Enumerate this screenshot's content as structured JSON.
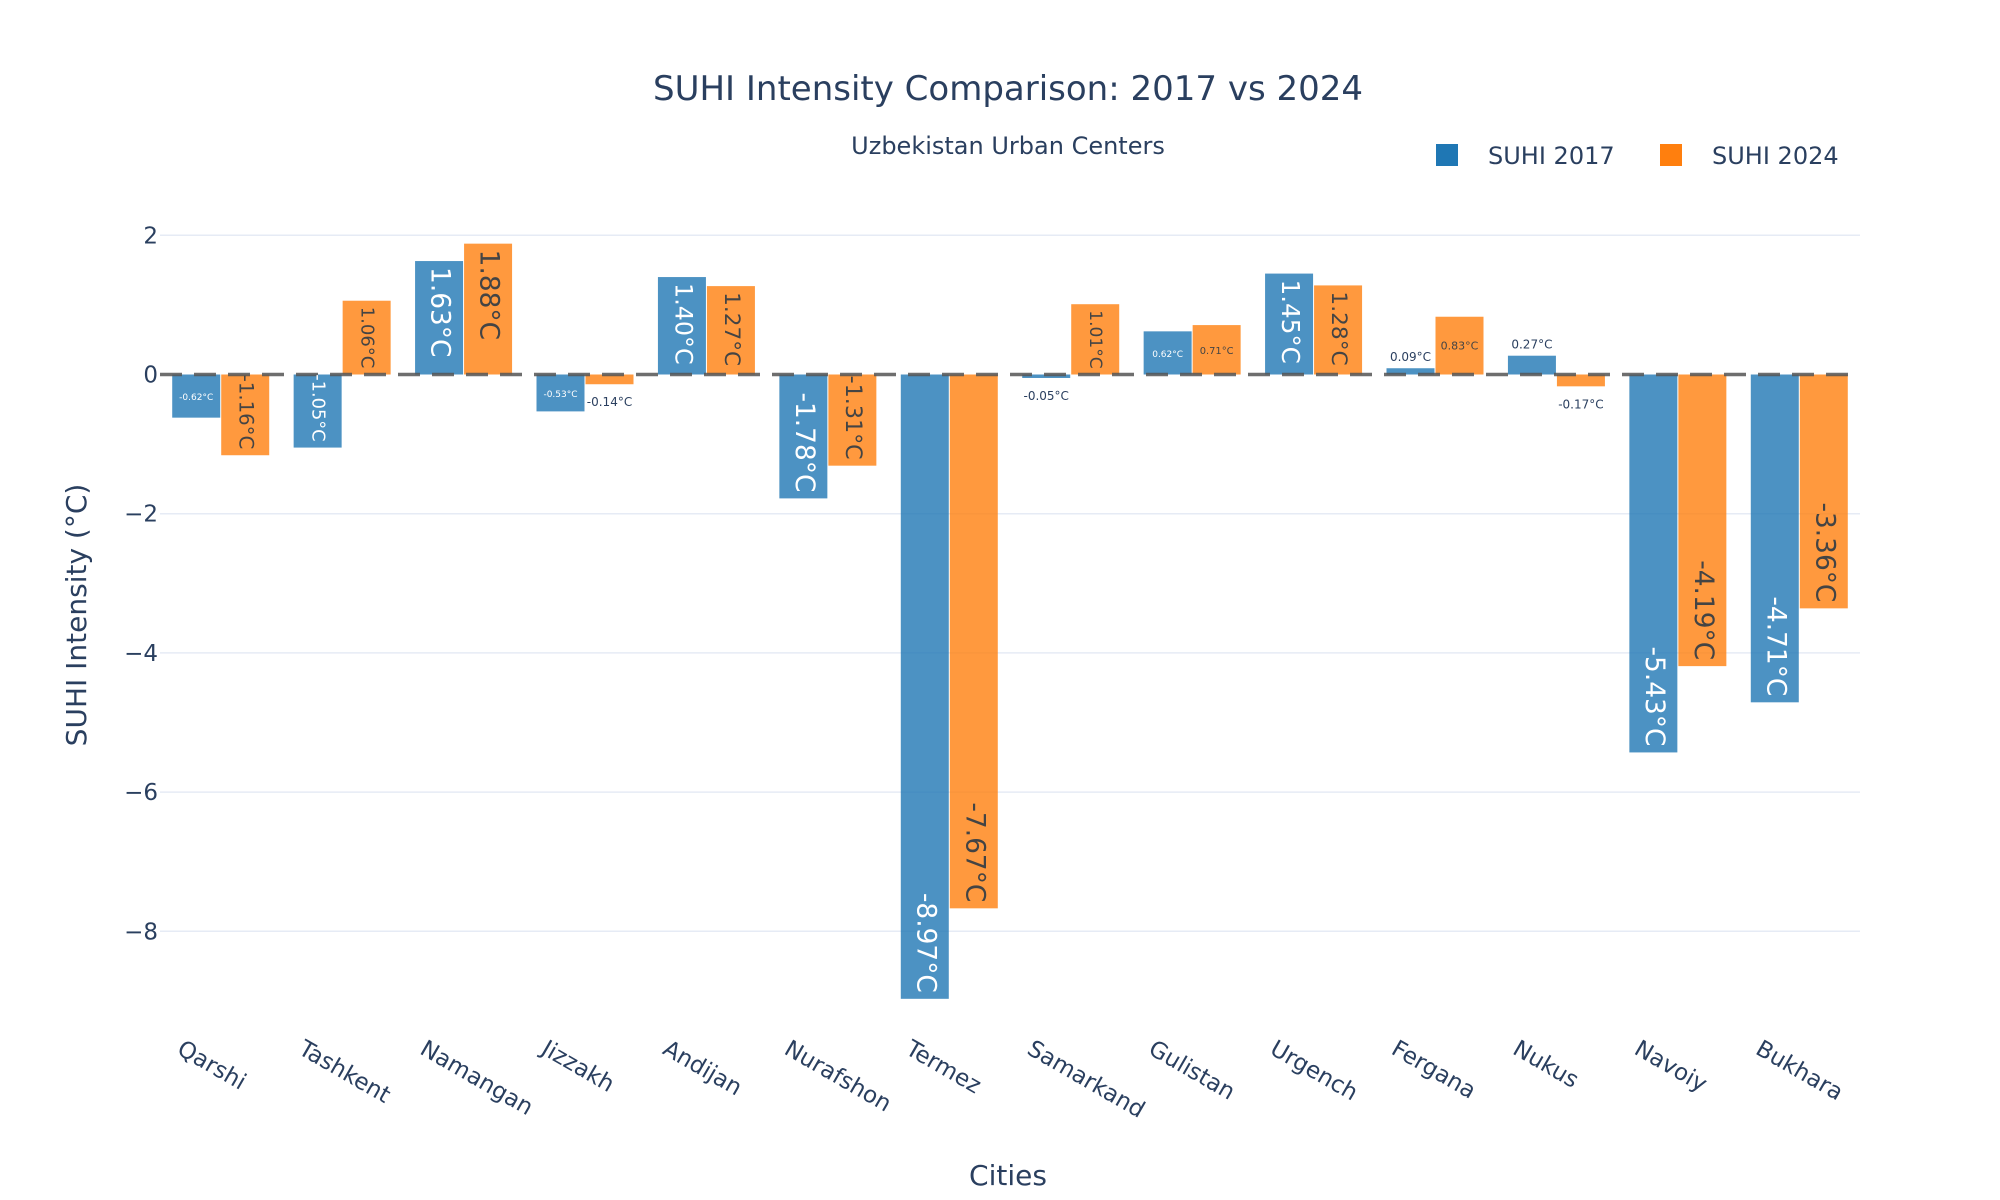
{
  "chart_data": {
    "type": "bar",
    "title": "SUHI Intensity Comparison: 2017 vs 2024",
    "subtitle": "Uzbekistan Urban Centers",
    "xlabel": "Cities",
    "ylabel": "SUHI Intensity (°C)",
    "categories": [
      "Qarshi",
      "Tashkent",
      "Namangan",
      "Jizzakh",
      "Andijan",
      "Nurafshon",
      "Termez",
      "Samarkand",
      "Gulistan",
      "Urgench",
      "Fergana",
      "Nukus",
      "Navoiy",
      "Bukhara"
    ],
    "series": [
      {
        "name": "SUHI 2017",
        "color": "#1f77b4",
        "values": [
          -0.62,
          -1.05,
          1.63,
          -0.53,
          1.4,
          -1.78,
          -8.97,
          -0.05,
          0.62,
          1.45,
          0.09,
          0.27,
          -5.43,
          -4.71
        ],
        "labels": [
          "-0.62°C",
          "-1.05°C",
          "1.63°C",
          "-0.53°C",
          "1.40°C",
          "-1.78°C",
          "-8.97°C",
          "-0.05°C",
          "0.62°C",
          "1.45°C",
          "0.09°C",
          "0.27°C",
          "-5.43°C",
          "-4.71°C"
        ]
      },
      {
        "name": "SUHI 2024",
        "color": "#ff7f0e",
        "values": [
          -1.16,
          1.06,
          1.88,
          -0.14,
          1.27,
          -1.31,
          -7.67,
          1.01,
          0.71,
          1.28,
          0.83,
          -0.17,
          -4.19,
          -3.36
        ],
        "labels": [
          "-1.16°C",
          "1.06°C",
          "1.88°C",
          "-0.14°C",
          "1.27°C",
          "-1.31°C",
          "-7.67°C",
          "1.01°C",
          "0.71°C",
          "1.28°C",
          "0.83°C",
          "-0.17°C",
          "-4.19°C",
          "-3.36°C"
        ]
      }
    ],
    "y_ticks": [
      2,
      0,
      -2,
      -4,
      -6,
      -8
    ],
    "y_tick_labels": [
      "2",
      "0",
      "−2",
      "−4",
      "−6",
      "−8"
    ],
    "ylim": [
      -9.3,
      2.6
    ],
    "reference_line": 0,
    "grid": true,
    "legend_position": "top-right"
  }
}
